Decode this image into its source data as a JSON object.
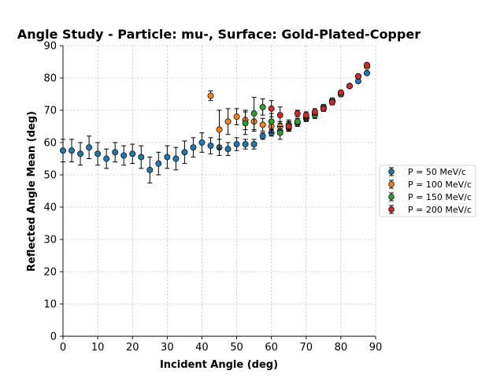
{
  "chart_data": {
    "type": "scatter",
    "title": "Angle Study - Particle: mu-, Surface: Gold-Plated-Copper",
    "xlabel": "Incident Angle (deg)",
    "ylabel": "Reflected Angle Mean (deg)",
    "xlim": [
      0,
      90
    ],
    "ylim": [
      0,
      90
    ],
    "xticks": [
      0,
      10,
      20,
      30,
      40,
      50,
      60,
      70,
      80,
      90
    ],
    "yticks": [
      0,
      10,
      20,
      30,
      40,
      50,
      60,
      70,
      80,
      90
    ],
    "grid": true,
    "legend_position": "center-right-outside",
    "series": [
      {
        "name": "P = 50 MeV/c",
        "color": "#1f77b4",
        "x": [
          0,
          2.5,
          5,
          7.5,
          10,
          12.5,
          15,
          17.5,
          20,
          22.5,
          25,
          27.5,
          30,
          32.5,
          35,
          37.5,
          40,
          42.5,
          45,
          47.5,
          50,
          52.5,
          55,
          57.5,
          60,
          62.5,
          65,
          67.5,
          70,
          72.5,
          75,
          77.5,
          80,
          82.5,
          85,
          87.5
        ],
        "y": [
          57.5,
          57.5,
          56.5,
          58.5,
          56.5,
          55,
          57,
          56,
          56.5,
          55.5,
          51.5,
          53.5,
          55.5,
          55,
          57,
          58.5,
          60,
          59,
          58.5,
          58,
          59.5,
          59.5,
          59.5,
          62,
          63,
          63.5,
          64.5,
          66,
          67.5,
          69,
          71,
          73,
          75,
          77.5,
          79,
          81.5
        ],
        "err": [
          3.5,
          3.5,
          3.5,
          3.5,
          3.5,
          3,
          3,
          3,
          3,
          3.5,
          4,
          3.5,
          3.5,
          3.5,
          3.5,
          3,
          3,
          2.5,
          2.5,
          2,
          2,
          1.5,
          1.5,
          1,
          1,
          1,
          1,
          1,
          0.8,
          0.8,
          0.8,
          0.5,
          0.5,
          0.5,
          0.5,
          0.5
        ]
      },
      {
        "name": "P = 100 MeV/c",
        "color": "#ff7f0e",
        "x": [
          42.5,
          45,
          47.5,
          50,
          52.5,
          55,
          57.5,
          60,
          62.5,
          65,
          67.5,
          70,
          72.5,
          75,
          77.5,
          80,
          82.5,
          85,
          87.5
        ],
        "y": [
          74.5,
          64,
          66.5,
          68,
          67,
          66.5,
          65.5,
          65,
          65,
          65,
          66,
          67.5,
          68.5,
          70.5,
          72.5,
          75,
          77.5,
          80.5,
          83.5
        ],
        "err": [
          1.5,
          6,
          4,
          2.5,
          3,
          3,
          2,
          2,
          1.5,
          1.5,
          1,
          1,
          1,
          0.8,
          0.8,
          0.8,
          0.5,
          0.5,
          0.5
        ]
      },
      {
        "name": "P = 150 MeV/c",
        "color": "#2ca02c",
        "x": [
          52.5,
          55,
          57.5,
          60,
          62.5,
          65,
          67.5,
          70,
          72.5,
          75,
          77.5,
          80,
          82.5,
          85,
          87.5
        ],
        "y": [
          66,
          69,
          71,
          66.5,
          63,
          65.5,
          66.5,
          68,
          68.5,
          70.5,
          73,
          75,
          77.5,
          80.5,
          84
        ],
        "err": [
          3.5,
          5,
          2.5,
          2.5,
          2,
          1.5,
          1,
          1,
          1,
          0.8,
          0.8,
          0.5,
          0.5,
          0.5,
          0.5
        ]
      },
      {
        "name": "P = 200 MeV/c",
        "color": "#d62728",
        "x": [
          60,
          62.5,
          65,
          67.5,
          70,
          72.5,
          75,
          77.5,
          80,
          82.5,
          85,
          87.5
        ],
        "y": [
          70.5,
          68.5,
          65,
          69,
          68.5,
          69.5,
          70.5,
          72.5,
          75.5,
          77.5,
          80.5,
          84
        ],
        "err": [
          2.5,
          2.5,
          1.5,
          1,
          1,
          1,
          0.8,
          0.8,
          0.5,
          0.5,
          0.5,
          0.5
        ]
      }
    ]
  }
}
